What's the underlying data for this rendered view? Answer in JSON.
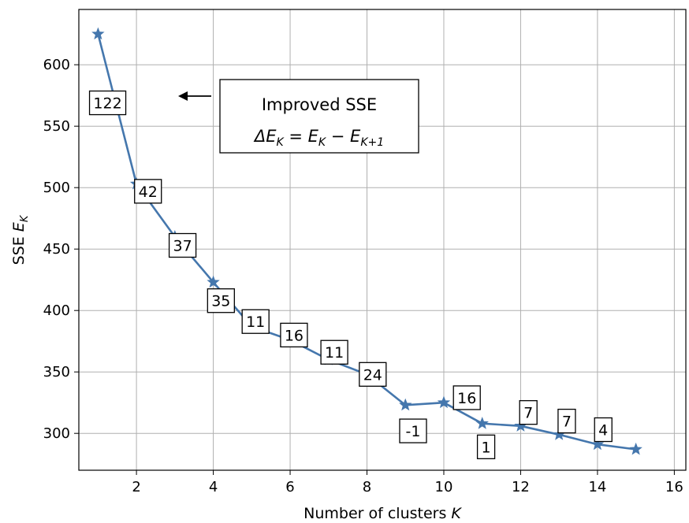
{
  "chart_data": {
    "type": "line",
    "xlabel": "Number of clusters K",
    "ylabel": "SSE E_K",
    "xlim": [
      0.5,
      16.3
    ],
    "ylim": [
      270,
      645
    ],
    "xticks": [
      2,
      4,
      6,
      8,
      10,
      12,
      14,
      16
    ],
    "yticks": [
      300,
      350,
      400,
      450,
      500,
      550,
      600
    ],
    "grid": true,
    "color": "#4577ad",
    "marker": "star",
    "series": [
      {
        "x": [
          1,
          2,
          3,
          4,
          5,
          6,
          7,
          8,
          9,
          10,
          11,
          12,
          13,
          14,
          15
        ],
        "y": [
          625,
          503,
          460,
          423,
          387,
          376,
          360,
          348,
          323,
          325,
          308,
          306,
          299,
          291,
          287
        ]
      }
    ],
    "annotations": [
      {
        "text": "122",
        "x": 1.25,
        "y": 569
      },
      {
        "text": "42",
        "x": 2.3,
        "y": 497
      },
      {
        "text": "37",
        "x": 3.2,
        "y": 453
      },
      {
        "text": "35",
        "x": 4.2,
        "y": 408
      },
      {
        "text": "11",
        "x": 5.1,
        "y": 391
      },
      {
        "text": "16",
        "x": 6.1,
        "y": 380
      },
      {
        "text": "11",
        "x": 7.15,
        "y": 366
      },
      {
        "text": "24",
        "x": 8.15,
        "y": 348
      },
      {
        "text": "-1",
        "x": 9.2,
        "y": 302
      },
      {
        "text": "16",
        "x": 10.6,
        "y": 329
      },
      {
        "text": "1",
        "x": 11.1,
        "y": 289
      },
      {
        "text": "7",
        "x": 12.2,
        "y": 317
      },
      {
        "text": "7",
        "x": 13.2,
        "y": 310
      },
      {
        "text": "4",
        "x": 14.15,
        "y": 303
      }
    ],
    "legend_box": {
      "title": "Improved SSE",
      "formula": "ΔE_K = E_K − E_K+1"
    }
  }
}
